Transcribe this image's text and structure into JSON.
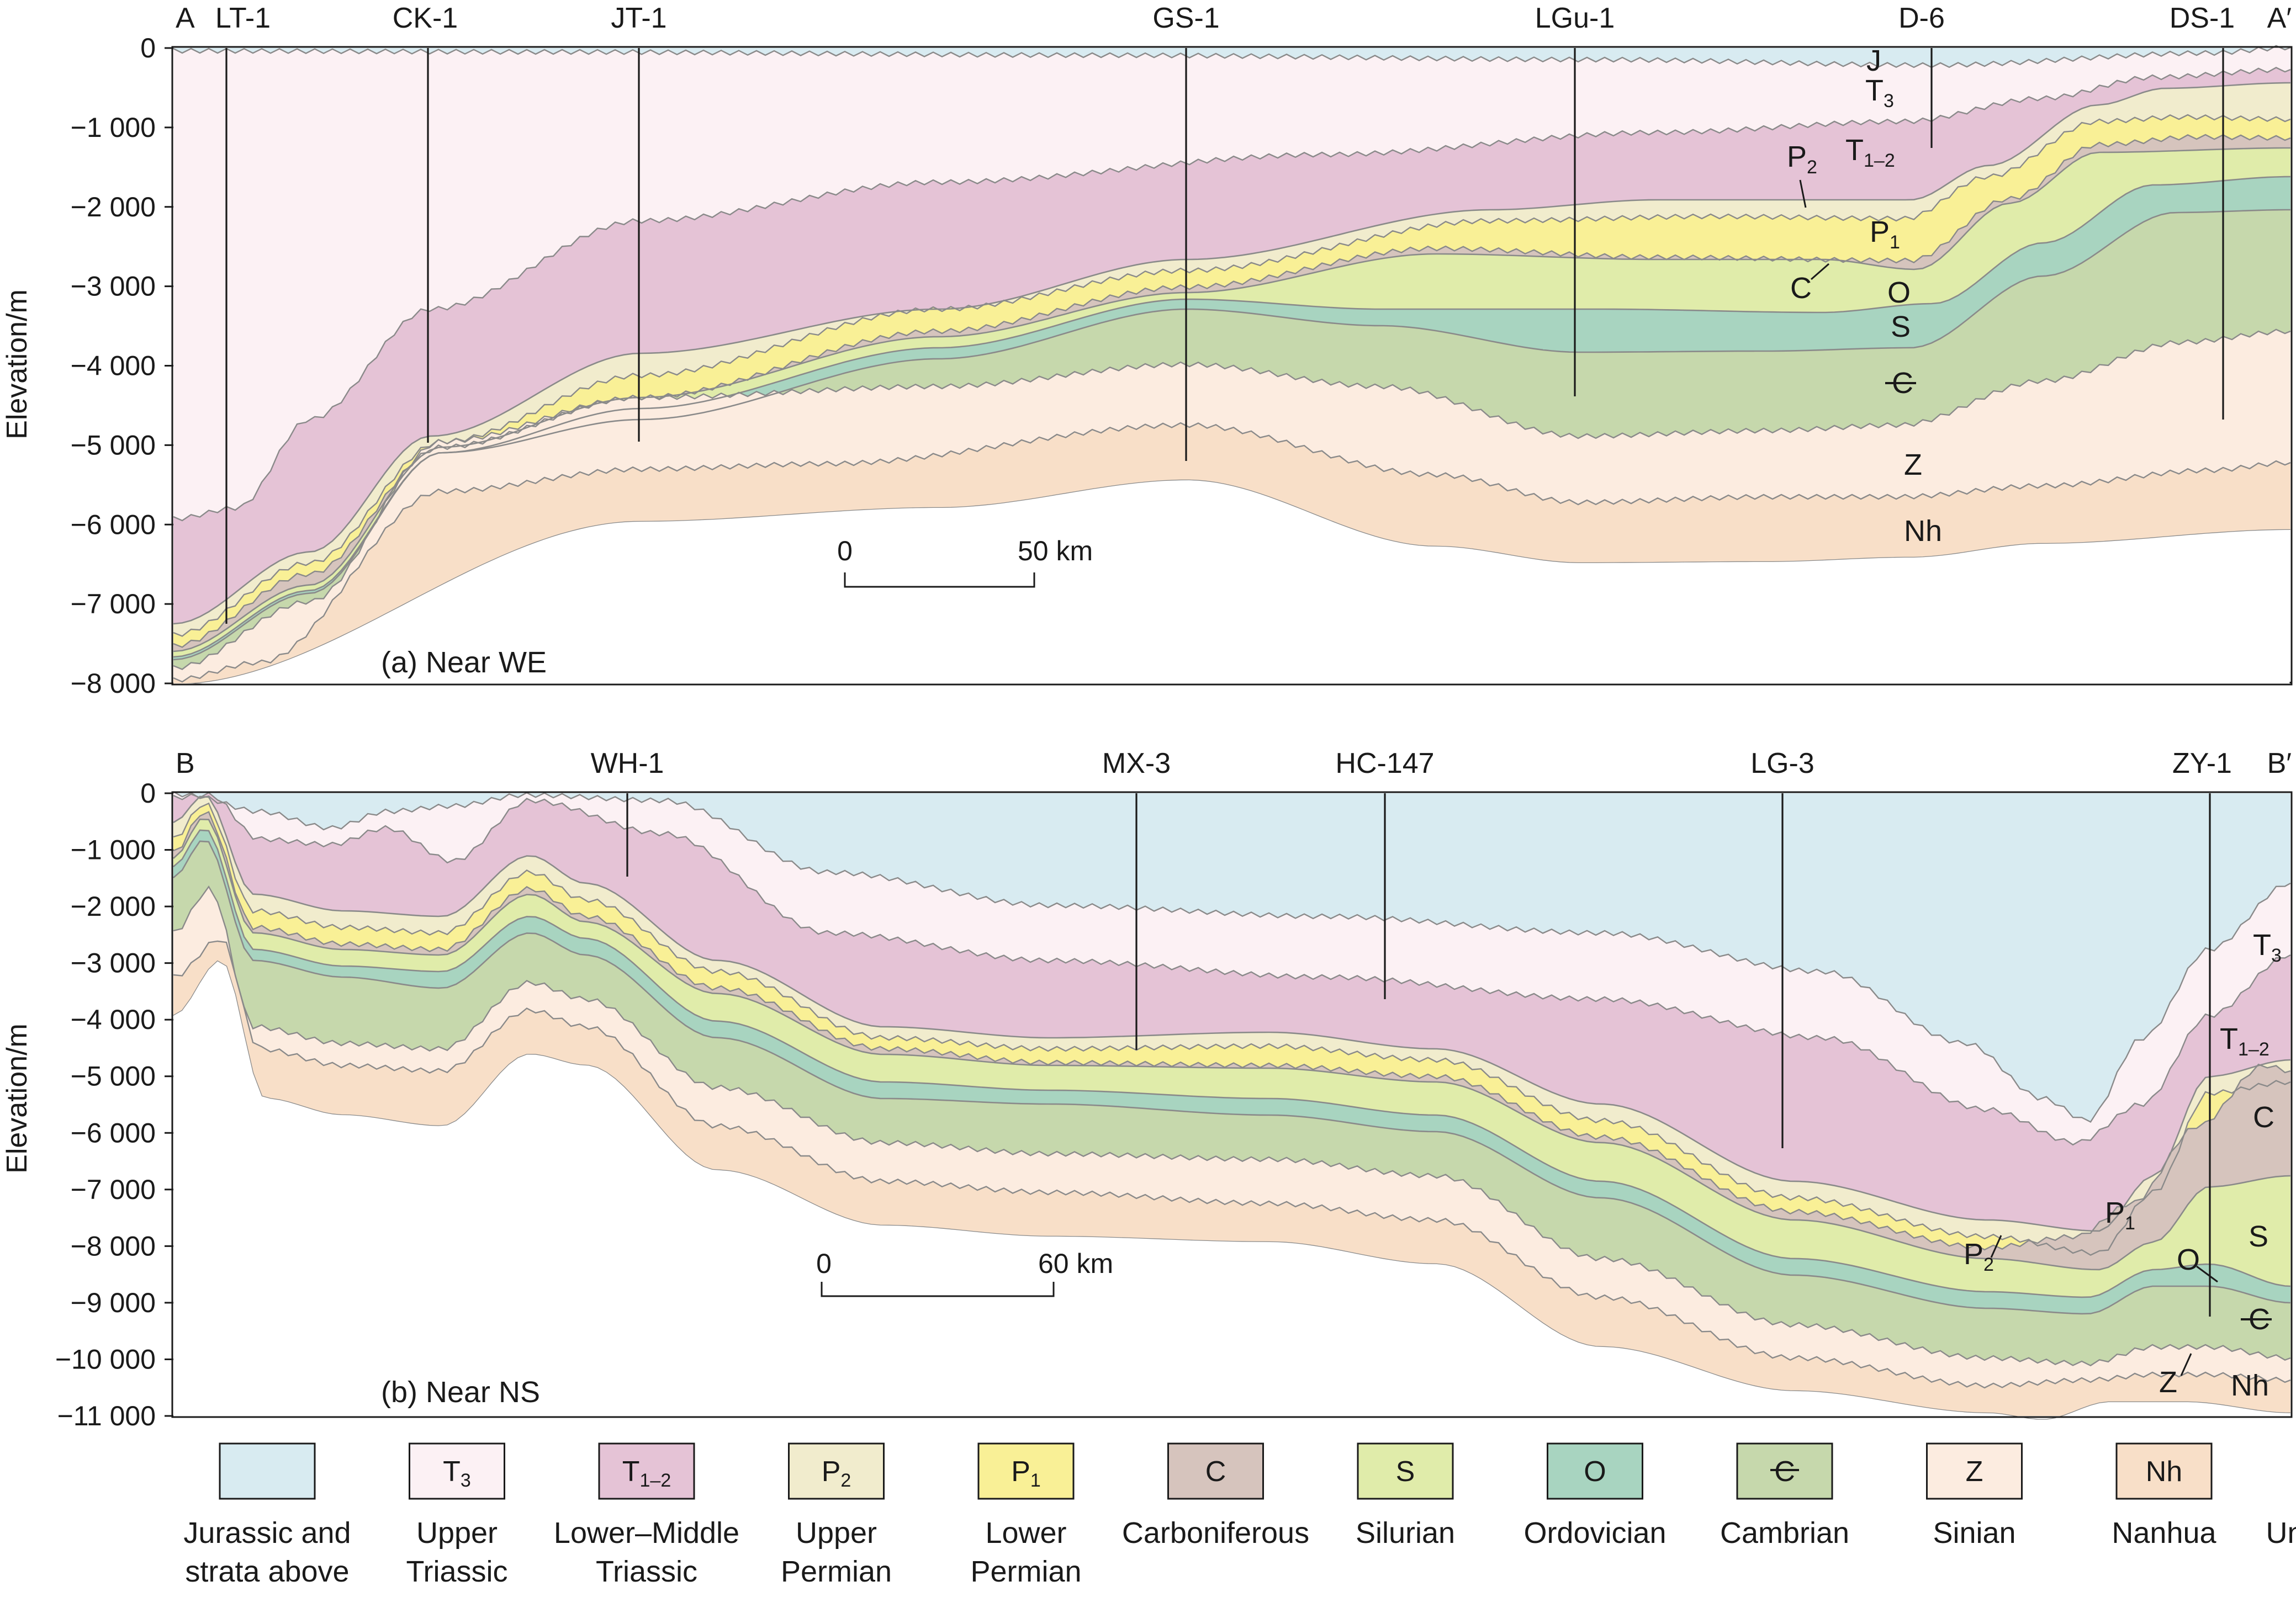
{
  "colors": {
    "J": "#d8ebf1",
    "T3": "#fcf1f4",
    "T12": "#e5c3d6",
    "P2": "#f1eccd",
    "P1": "#f9f096",
    "C": "#d6c4bd",
    "S": "#e0ecaa",
    "O": "#a8d4c0",
    "Cm": "#c6d8ac",
    "Z": "#fcece0",
    "Nh": "#f8dfc8"
  },
  "panels": [
    {
      "id": "a",
      "caption": "(a) Near WE",
      "y_axis_title": "Elevation/m",
      "y_ticks": [
        "0",
        "−1 000",
        "−2 000",
        "−3 000",
        "−4 000",
        "−5 000",
        "−6 000",
        "−7 000",
        "−8 000"
      ],
      "ylim": [
        -8000,
        0
      ],
      "end_labels": [
        "A",
        "A′"
      ],
      "wells": [
        "LT-1",
        "CK-1",
        "JT-1",
        "GS-1",
        "LGu-1",
        "D-6",
        "DS-1"
      ],
      "scale_bar": [
        "0",
        "50 km"
      ],
      "strata_labels": [
        "J",
        "T3",
        "T1–2",
        "P2",
        "P1",
        "C",
        "O",
        "S",
        "€",
        "Z",
        "Nh"
      ]
    },
    {
      "id": "b",
      "caption": "(b) Near NS",
      "y_axis_title": "Elevation/m",
      "y_ticks": [
        "0",
        "−1 000",
        "−2 000",
        "−3 000",
        "−4 000",
        "−5 000",
        "−6 000",
        "−7 000",
        "−8 000",
        "−9 000",
        "−10 000",
        "−11 000"
      ],
      "ylim": [
        -11000,
        0
      ],
      "end_labels": [
        "B",
        "B′"
      ],
      "wells": [
        "WH-1",
        "MX-3",
        "HC-147",
        "LG-3",
        "ZY-1"
      ],
      "scale_bar": [
        "0",
        "60 km"
      ],
      "strata_labels": [
        "T3",
        "T1–2",
        "C",
        "S",
        "P1",
        "P2",
        "O",
        "€",
        "Z",
        "Nh"
      ]
    }
  ],
  "legend": [
    {
      "code": "",
      "name_lines": [
        "Jurassic and",
        "strata above"
      ],
      "color_key": "J"
    },
    {
      "code": "T3",
      "name_lines": [
        "Upper",
        "Triassic"
      ],
      "color_key": "T3"
    },
    {
      "code": "T1–2",
      "name_lines": [
        "Lower–Middle",
        "Triassic"
      ],
      "color_key": "T12"
    },
    {
      "code": "P2",
      "name_lines": [
        "Upper",
        "Permian"
      ],
      "color_key": "P2"
    },
    {
      "code": "P1",
      "name_lines": [
        "Lower",
        "Permian"
      ],
      "color_key": "P1"
    },
    {
      "code": "C",
      "name_lines": [
        "Carboniferous"
      ],
      "color_key": "C"
    },
    {
      "code": "S",
      "name_lines": [
        "Silurian"
      ],
      "color_key": "S"
    },
    {
      "code": "O",
      "name_lines": [
        "Ordovician"
      ],
      "color_key": "O"
    },
    {
      "code": "€",
      "name_lines": [
        "Cambrian"
      ],
      "color_key": "Cm"
    },
    {
      "code": "Z",
      "name_lines": [
        "Sinian"
      ],
      "color_key": "Z"
    },
    {
      "code": "Nh",
      "name_lines": [
        "Nanhua"
      ],
      "color_key": "Nh"
    },
    {
      "code": "",
      "name_lines": [
        "Unconformity"
      ],
      "color_key": "none"
    }
  ]
}
